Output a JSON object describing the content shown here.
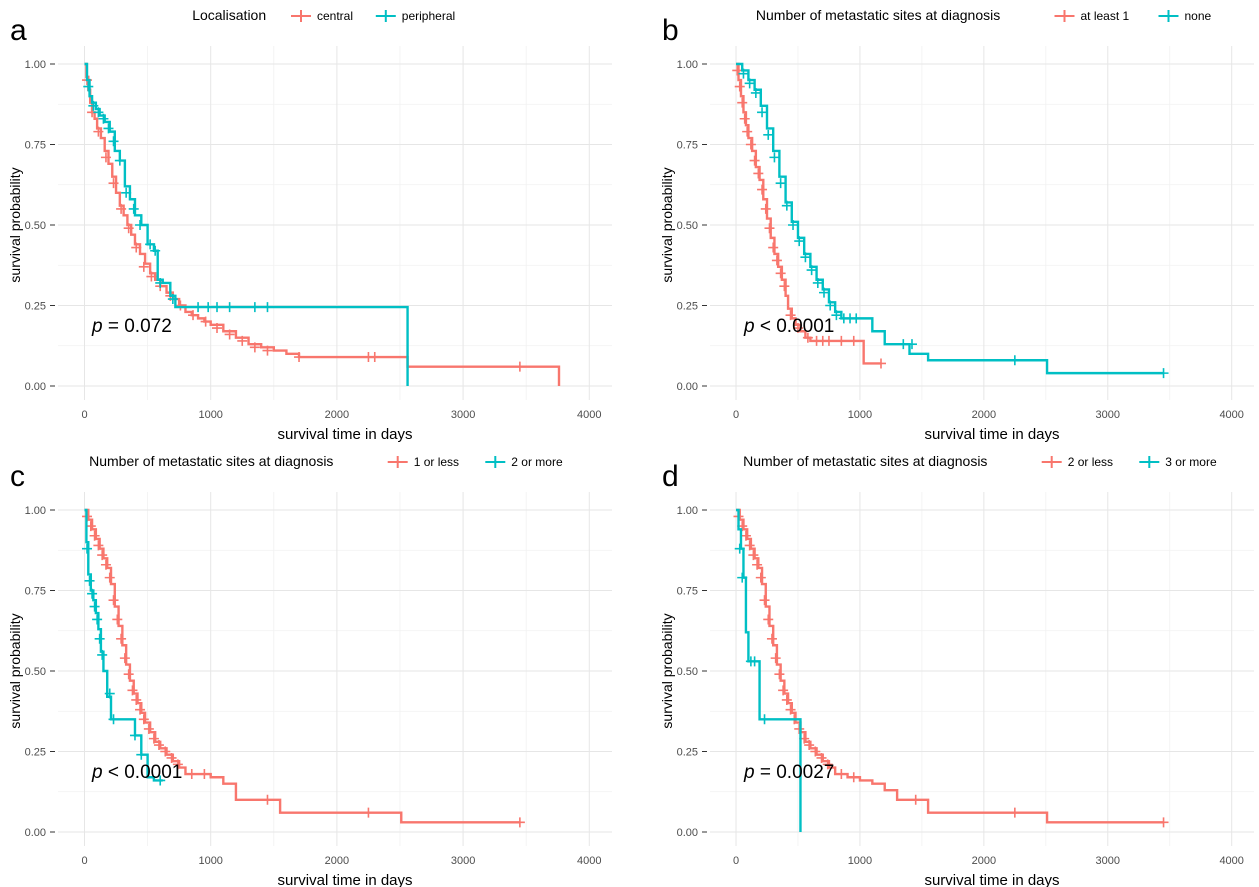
{
  "chart_data": [
    {
      "type": "line",
      "panel_label": "a",
      "legend_title": "Localisation",
      "legend_position": "top",
      "xlabel": "survival time in days",
      "ylabel": "survival probability",
      "xlim": [
        0,
        4000
      ],
      "ylim": [
        0,
        1
      ],
      "x_ticks": [
        "0",
        "1000",
        "2000",
        "3000",
        "4000"
      ],
      "y_ticks": [
        "0.00",
        "0.25",
        "0.50",
        "0.75",
        "1.00"
      ],
      "grid": true,
      "annotation": {
        "p_symbol": "p",
        "p_text": "= 0.072"
      },
      "series": [
        {
          "name": "central",
          "color": "#F8766D",
          "x": [
            0,
            15,
            30,
            45,
            60,
            80,
            100,
            130,
            160,
            190,
            220,
            250,
            280,
            310,
            340,
            370,
            400,
            440,
            480,
            520,
            560,
            600,
            650,
            700,
            750,
            800,
            850,
            900,
            950,
            1000,
            1100,
            1200,
            1300,
            1400,
            1500,
            1600,
            1700,
            2000,
            2300,
            2400,
            2500,
            2560,
            3000,
            3450,
            3760
          ],
          "y": [
            1.0,
            0.96,
            0.92,
            0.88,
            0.85,
            0.83,
            0.8,
            0.77,
            0.73,
            0.69,
            0.65,
            0.6,
            0.56,
            0.53,
            0.5,
            0.47,
            0.44,
            0.41,
            0.38,
            0.35,
            0.33,
            0.31,
            0.29,
            0.27,
            0.25,
            0.23,
            0.22,
            0.21,
            0.2,
            0.19,
            0.17,
            0.15,
            0.13,
            0.12,
            0.11,
            0.1,
            0.09,
            0.09,
            0.09,
            0.09,
            0.09,
            0.06,
            0.06,
            0.06,
            0.0
          ],
          "censor_x": [
            20,
            60,
            110,
            170,
            230,
            290,
            350,
            410,
            470,
            530,
            600,
            680,
            760,
            860,
            960,
            1050,
            1150,
            1250,
            1350,
            1450,
            1700,
            2250,
            2300,
            3450
          ],
          "censor_y": [
            0.95,
            0.85,
            0.79,
            0.71,
            0.63,
            0.55,
            0.49,
            0.43,
            0.37,
            0.34,
            0.31,
            0.28,
            0.25,
            0.22,
            0.2,
            0.18,
            0.16,
            0.14,
            0.12,
            0.11,
            0.09,
            0.09,
            0.09,
            0.06
          ]
        },
        {
          "name": "peripheral",
          "color": "#00BFC4",
          "x": [
            0,
            20,
            40,
            60,
            90,
            120,
            160,
            200,
            240,
            280,
            320,
            360,
            400,
            450,
            500,
            550,
            580,
            620,
            680,
            720,
            800,
            900,
            2400,
            2550,
            2560
          ],
          "y": [
            1.0,
            0.95,
            0.9,
            0.88,
            0.86,
            0.84,
            0.82,
            0.79,
            0.73,
            0.7,
            0.62,
            0.58,
            0.53,
            0.5,
            0.44,
            0.42,
            0.33,
            0.32,
            0.28,
            0.245,
            0.245,
            0.245,
            0.245,
            0.245,
            0.0
          ],
          "censor_x": [
            30,
            70,
            110,
            150,
            190,
            230,
            280,
            330,
            390,
            440,
            520,
            560,
            600,
            700,
            900,
            980,
            1050,
            1150,
            1350,
            1450
          ],
          "censor_y": [
            0.93,
            0.87,
            0.85,
            0.83,
            0.8,
            0.76,
            0.7,
            0.6,
            0.55,
            0.5,
            0.44,
            0.42,
            0.32,
            0.27,
            0.245,
            0.245,
            0.245,
            0.245,
            0.245,
            0.245
          ]
        }
      ]
    },
    {
      "type": "line",
      "panel_label": "b",
      "legend_title": "Number of metastatic sites at diagnosis",
      "legend_position": "top",
      "xlabel": "survival time in days",
      "ylabel": "survival probability",
      "xlim": [
        0,
        4000
      ],
      "ylim": [
        0,
        1
      ],
      "x_ticks": [
        "0",
        "1000",
        "2000",
        "3000",
        "4000"
      ],
      "y_ticks": [
        "0.00",
        "0.25",
        "0.50",
        "0.75",
        "1.00"
      ],
      "grid": true,
      "annotation": {
        "p_symbol": "p",
        "p_text": "< 0.0001"
      },
      "series": [
        {
          "name": "at least 1",
          "color": "#F8766D",
          "x": [
            0,
            20,
            40,
            60,
            80,
            100,
            130,
            160,
            190,
            220,
            250,
            280,
            310,
            340,
            370,
            400,
            420,
            450,
            480,
            520,
            560,
            600,
            700,
            800,
            950,
            1000,
            1030,
            1150,
            1170
          ],
          "y": [
            1.0,
            0.95,
            0.9,
            0.85,
            0.81,
            0.77,
            0.73,
            0.68,
            0.64,
            0.58,
            0.52,
            0.46,
            0.41,
            0.37,
            0.33,
            0.28,
            0.24,
            0.21,
            0.19,
            0.17,
            0.15,
            0.14,
            0.14,
            0.14,
            0.14,
            0.14,
            0.07,
            0.07,
            0.07
          ],
          "censor_x": [
            10,
            30,
            50,
            70,
            90,
            120,
            150,
            180,
            210,
            240,
            270,
            300,
            330,
            360,
            390,
            440,
            500,
            580,
            650,
            700,
            750,
            850,
            950,
            1170
          ],
          "censor_y": [
            0.98,
            0.93,
            0.88,
            0.83,
            0.79,
            0.75,
            0.7,
            0.66,
            0.61,
            0.55,
            0.49,
            0.43,
            0.39,
            0.35,
            0.31,
            0.22,
            0.18,
            0.15,
            0.14,
            0.14,
            0.14,
            0.14,
            0.14,
            0.07
          ]
        },
        {
          "name": "none",
          "color": "#00BFC4",
          "x": [
            0,
            50,
            100,
            150,
            200,
            250,
            300,
            350,
            400,
            450,
            500,
            550,
            600,
            650,
            700,
            750,
            800,
            850,
            900,
            1000,
            1100,
            1200,
            1300,
            1400,
            1550,
            2000,
            2500,
            2510,
            3000,
            3450
          ],
          "y": [
            1.0,
            0.98,
            0.95,
            0.92,
            0.87,
            0.8,
            0.73,
            0.65,
            0.57,
            0.51,
            0.46,
            0.41,
            0.37,
            0.33,
            0.3,
            0.26,
            0.23,
            0.21,
            0.21,
            0.21,
            0.17,
            0.13,
            0.13,
            0.1,
            0.08,
            0.08,
            0.08,
            0.04,
            0.04,
            0.04
          ],
          "censor_x": [
            60,
            110,
            160,
            210,
            260,
            310,
            360,
            410,
            460,
            510,
            560,
            610,
            660,
            710,
            760,
            810,
            870,
            920,
            970,
            1350,
            1420,
            2250,
            3450
          ],
          "censor_y": [
            0.97,
            0.94,
            0.91,
            0.85,
            0.78,
            0.71,
            0.63,
            0.56,
            0.5,
            0.45,
            0.4,
            0.36,
            0.32,
            0.29,
            0.25,
            0.22,
            0.21,
            0.21,
            0.21,
            0.13,
            0.13,
            0.08,
            0.04
          ]
        }
      ]
    },
    {
      "type": "line",
      "panel_label": "c",
      "legend_title": "Number of metastatic sites at diagnosis",
      "legend_position": "top",
      "xlabel": "survival time in days",
      "ylabel": "survival probability",
      "xlim": [
        0,
        4000
      ],
      "ylim": [
        0,
        1
      ],
      "x_ticks": [
        "0",
        "1000",
        "2000",
        "3000",
        "4000"
      ],
      "y_ticks": [
        "0.00",
        "0.25",
        "0.50",
        "0.75",
        "1.00"
      ],
      "grid": true,
      "annotation": {
        "p_symbol": "p",
        "p_text": "< 0.0001"
      },
      "series": [
        {
          "name": "1 or less",
          "color": "#F8766D",
          "x": [
            0,
            30,
            60,
            90,
            120,
            150,
            180,
            210,
            240,
            270,
            300,
            330,
            360,
            390,
            420,
            450,
            480,
            520,
            560,
            600,
            650,
            700,
            750,
            800,
            900,
            1000,
            1100,
            1200,
            1300,
            1400,
            1550,
            2000,
            2500,
            2510,
            3000,
            3450
          ],
          "y": [
            1.0,
            0.97,
            0.94,
            0.91,
            0.88,
            0.85,
            0.82,
            0.77,
            0.7,
            0.64,
            0.58,
            0.52,
            0.47,
            0.43,
            0.4,
            0.37,
            0.34,
            0.31,
            0.28,
            0.26,
            0.24,
            0.22,
            0.2,
            0.18,
            0.18,
            0.17,
            0.15,
            0.1,
            0.1,
            0.1,
            0.06,
            0.06,
            0.06,
            0.03,
            0.03,
            0.03
          ],
          "censor_x": [
            20,
            50,
            80,
            110,
            140,
            170,
            200,
            230,
            260,
            290,
            320,
            350,
            380,
            410,
            440,
            470,
            510,
            550,
            590,
            640,
            690,
            740,
            850,
            950,
            1450,
            2250,
            3450
          ],
          "censor_y": [
            0.98,
            0.95,
            0.92,
            0.89,
            0.86,
            0.83,
            0.79,
            0.72,
            0.66,
            0.6,
            0.54,
            0.49,
            0.44,
            0.41,
            0.38,
            0.35,
            0.32,
            0.29,
            0.27,
            0.25,
            0.23,
            0.21,
            0.18,
            0.18,
            0.1,
            0.06,
            0.03
          ]
        },
        {
          "name": "2 or more",
          "color": "#00BFC4",
          "x": [
            0,
            15,
            30,
            50,
            70,
            90,
            110,
            130,
            150,
            180,
            210,
            240,
            300,
            360,
            400,
            450,
            500,
            550,
            620
          ],
          "y": [
            1.0,
            0.9,
            0.8,
            0.75,
            0.72,
            0.68,
            0.63,
            0.56,
            0.5,
            0.42,
            0.35,
            0.35,
            0.35,
            0.35,
            0.3,
            0.24,
            0.17,
            0.16,
            0.16
          ],
          "censor_x": [
            20,
            40,
            60,
            80,
            100,
            120,
            140,
            200,
            230,
            400,
            450,
            600
          ],
          "censor_y": [
            0.88,
            0.78,
            0.74,
            0.7,
            0.66,
            0.6,
            0.55,
            0.43,
            0.35,
            0.3,
            0.24,
            0.16
          ]
        }
      ]
    },
    {
      "type": "line",
      "panel_label": "d",
      "legend_title": "Number of metastatic sites at diagnosis",
      "legend_position": "top",
      "xlabel": "survival time in days",
      "ylabel": "survival probability",
      "xlim": [
        0,
        4000
      ],
      "ylim": [
        0,
        1
      ],
      "x_ticks": [
        "0",
        "1000",
        "2000",
        "3000",
        "4000"
      ],
      "y_ticks": [
        "0.00",
        "0.25",
        "0.50",
        "0.75",
        "1.00"
      ],
      "grid": true,
      "annotation": {
        "p_symbol": "p",
        "p_text": "= 0.0027"
      },
      "series": [
        {
          "name": "2 or less",
          "color": "#F8766D",
          "x": [
            0,
            30,
            60,
            90,
            120,
            150,
            180,
            210,
            240,
            270,
            300,
            330,
            360,
            390,
            420,
            450,
            480,
            520,
            560,
            600,
            650,
            700,
            750,
            800,
            900,
            1000,
            1100,
            1200,
            1300,
            1400,
            1550,
            2000,
            2500,
            2510,
            3000,
            3450
          ],
          "y": [
            1.0,
            0.97,
            0.94,
            0.91,
            0.88,
            0.85,
            0.82,
            0.77,
            0.7,
            0.64,
            0.58,
            0.52,
            0.47,
            0.43,
            0.4,
            0.37,
            0.34,
            0.31,
            0.28,
            0.26,
            0.24,
            0.22,
            0.2,
            0.18,
            0.17,
            0.16,
            0.15,
            0.13,
            0.1,
            0.1,
            0.06,
            0.06,
            0.06,
            0.03,
            0.03,
            0.03
          ],
          "censor_x": [
            20,
            50,
            80,
            110,
            140,
            170,
            200,
            230,
            260,
            290,
            320,
            350,
            380,
            410,
            440,
            470,
            510,
            550,
            590,
            640,
            690,
            740,
            850,
            950,
            1450,
            2250,
            3450
          ],
          "censor_y": [
            0.98,
            0.95,
            0.92,
            0.89,
            0.86,
            0.83,
            0.79,
            0.72,
            0.66,
            0.6,
            0.54,
            0.49,
            0.44,
            0.41,
            0.38,
            0.35,
            0.32,
            0.29,
            0.27,
            0.25,
            0.23,
            0.21,
            0.18,
            0.17,
            0.1,
            0.06,
            0.03
          ]
        },
        {
          "name": "3 or more",
          "color": "#00BFC4",
          "x": [
            0,
            20,
            40,
            60,
            80,
            100,
            150,
            190,
            250,
            300,
            400,
            500,
            520
          ],
          "y": [
            1.0,
            0.94,
            0.88,
            0.79,
            0.62,
            0.53,
            0.53,
            0.35,
            0.35,
            0.35,
            0.35,
            0.35,
            0.0
          ],
          "censor_x": [
            30,
            50,
            120,
            150,
            230
          ],
          "censor_y": [
            0.88,
            0.79,
            0.53,
            0.53,
            0.35
          ]
        }
      ]
    }
  ]
}
